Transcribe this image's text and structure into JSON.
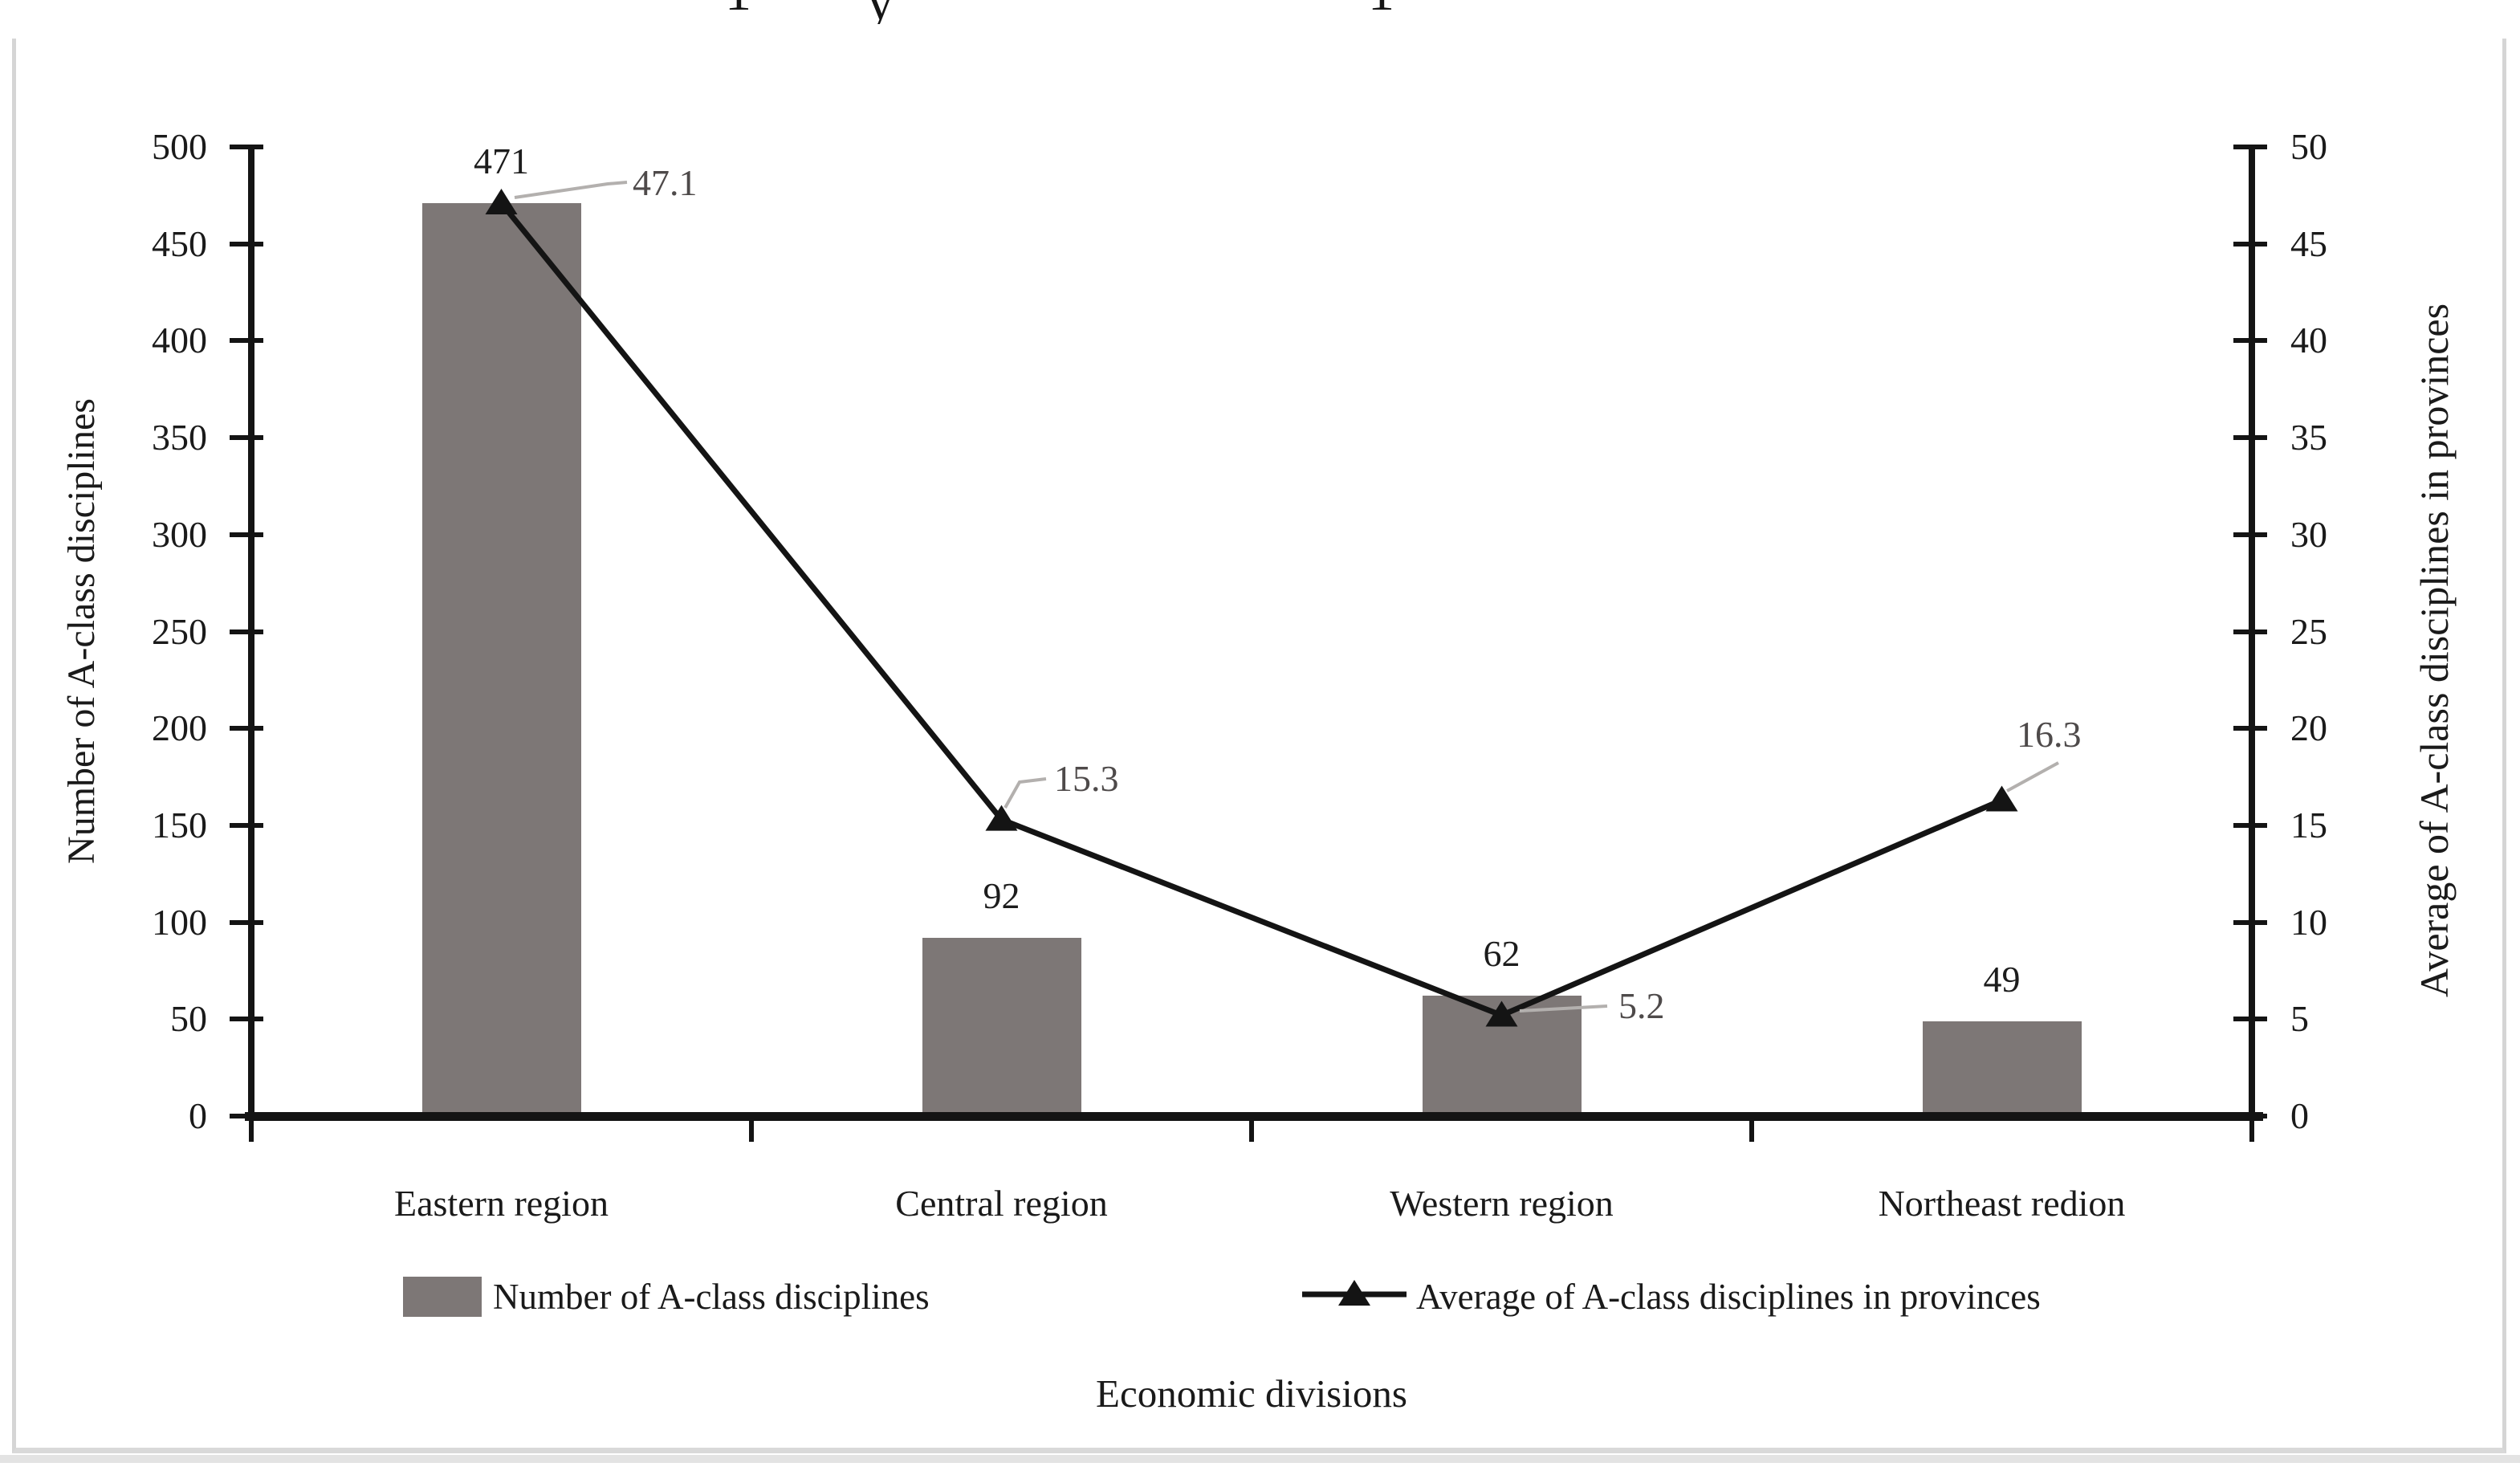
{
  "figure": {
    "background": "#ffffff",
    "frame_color": "#d5d5d5",
    "cropped_text_fragments": [
      "1",
      "y",
      "1"
    ]
  },
  "chart_data": {
    "type": "combo",
    "grid": false,
    "categories": [
      "Eastern region",
      "Central region",
      "Western region",
      "Northeast redion"
    ],
    "series": [
      {
        "name": "Number of A-class disciplines",
        "type": "bar",
        "axis": "left",
        "color": "#7d7776",
        "values": [
          471,
          92,
          62,
          49
        ],
        "data_labels": [
          "471",
          "92",
          "62",
          "49"
        ]
      },
      {
        "name": "Average of A-class disciplines in provinces",
        "type": "line",
        "axis": "right",
        "color": "#141414",
        "marker": "filled-triangle",
        "values": [
          47.1,
          15.3,
          5.2,
          16.3
        ],
        "data_labels": [
          "47.1",
          "15.3",
          "5.2",
          "16.3"
        ]
      }
    ],
    "left_axis": {
      "title": "Number of A-class disciplines",
      "min": 0,
      "max": 500,
      "step": 50,
      "tick_labels": [
        "500",
        "450",
        "400",
        "350",
        "300",
        "250",
        "200",
        "150",
        "100",
        "50",
        "0"
      ]
    },
    "right_axis": {
      "title": "Average of A-class disciplines in provinces",
      "min": 0,
      "max": 50,
      "step": 5,
      "tick_labels": [
        "50",
        "45",
        "40",
        "35",
        "30",
        "25",
        "20",
        "15",
        "10",
        "5",
        "0"
      ]
    },
    "x_axis": {
      "title": "Economic divisions",
      "tick_labels": [
        "Eastern region",
        "Central region",
        "Western region",
        "Northeast redion"
      ]
    },
    "legend": {
      "position": "bottom",
      "entries": [
        "Number of A-class disciplines",
        "Average of A-class disciplines in provinces"
      ]
    },
    "leader_line_color": "#b3b0ae"
  }
}
